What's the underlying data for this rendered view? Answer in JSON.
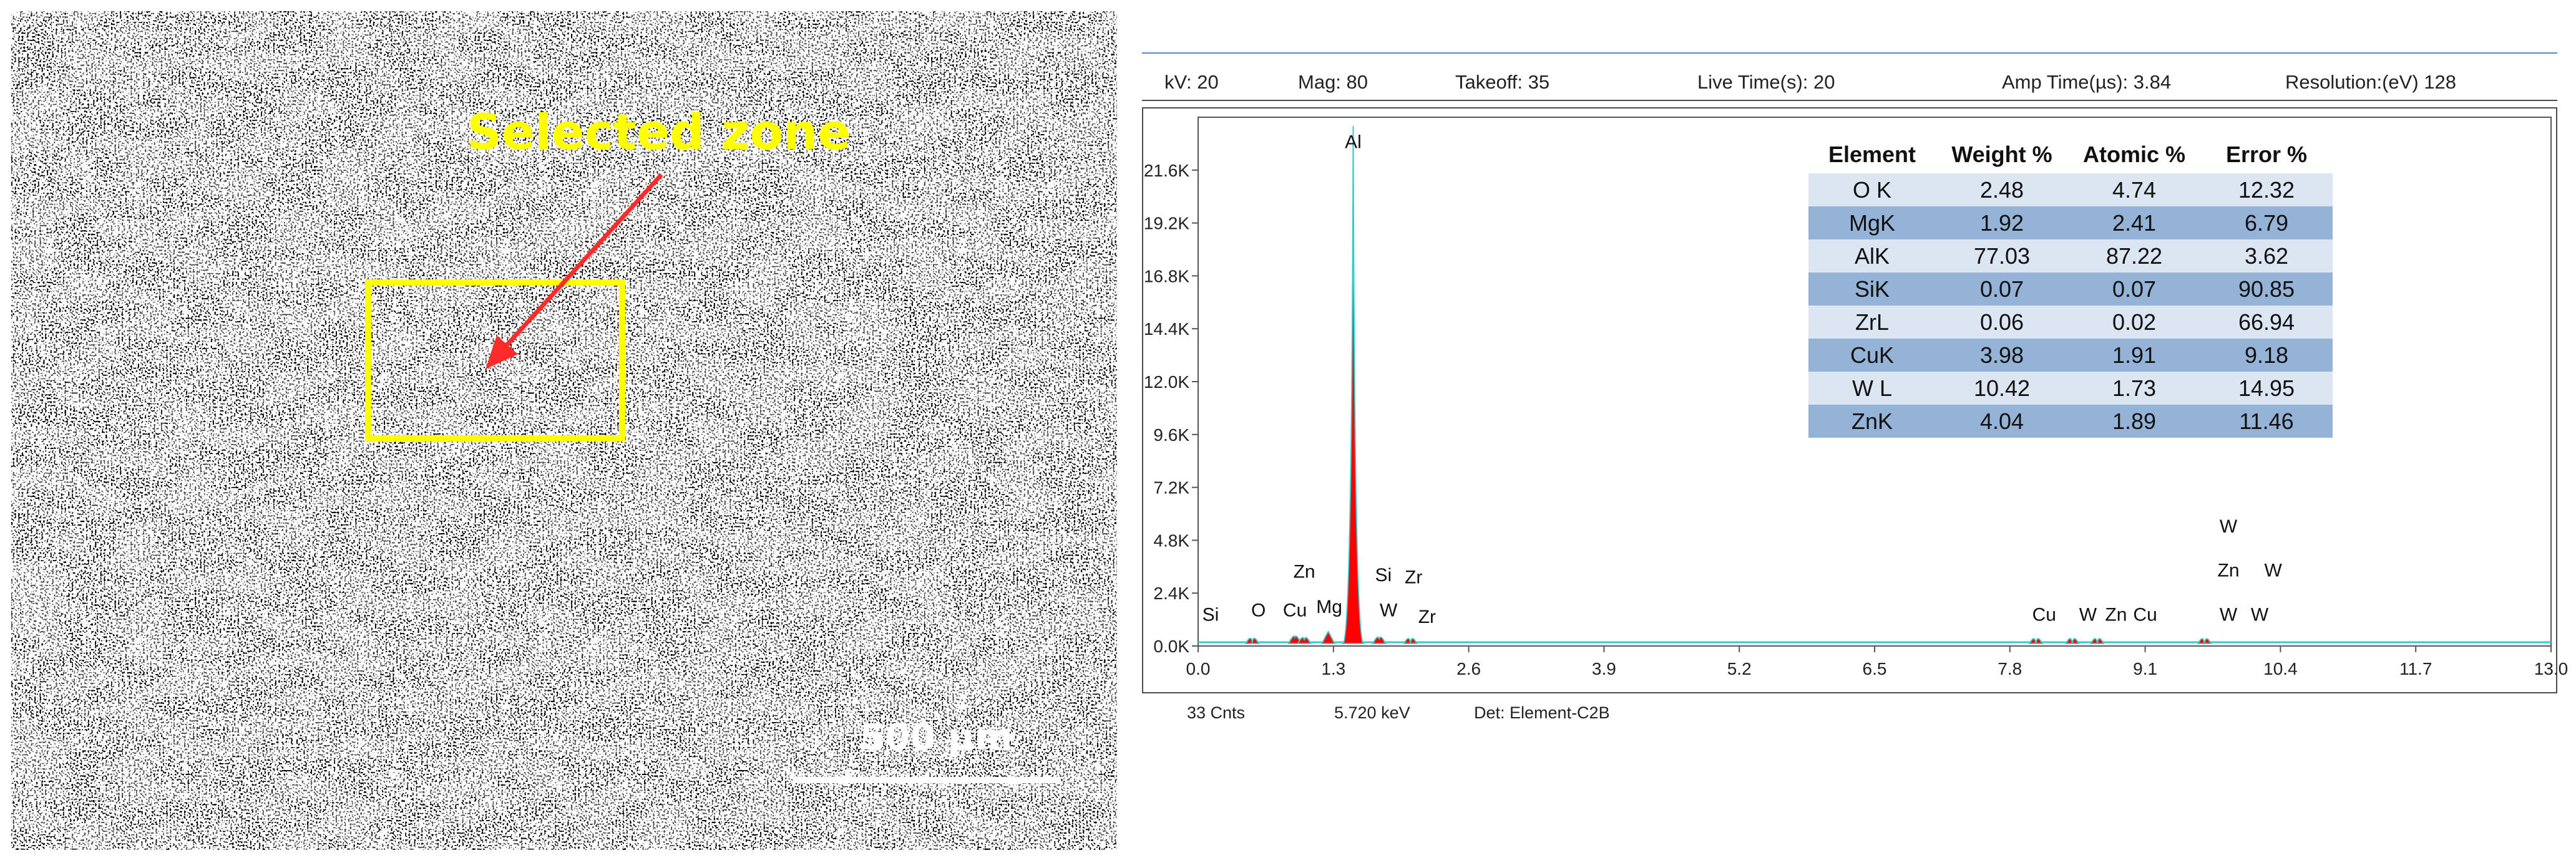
{
  "sem": {
    "zone_label": "Selected zone",
    "scale_label": "500 µm"
  },
  "params": {
    "kv": "kV: 20",
    "mag": "Mag: 80",
    "takeoff": "Takeoff: 35",
    "live_time": "Live Time(s): 20",
    "amp_time": "Amp Time(µs): 3.84",
    "resolution": "Resolution:(eV) 128"
  },
  "footer": {
    "cnts": "33 Cnts",
    "kev": "5.720 keV",
    "det": "Det: Element-C2B"
  },
  "colors": {
    "peak_fill": "#ff0000",
    "spectrum_line": "#33cccc",
    "annotation": "#ffff00",
    "arrow": "#ff2a2a",
    "table_light": "#dce6f2",
    "table_dark": "#95b3d7"
  },
  "chart_data": {
    "type": "area",
    "xlim": [
      0.0,
      13.0
    ],
    "ylim": [
      0,
      24000
    ],
    "x_ticks": [
      "0.0",
      "1.3",
      "2.6",
      "3.9",
      "5.2",
      "6.5",
      "7.8",
      "9.1",
      "10.4",
      "11.7",
      "13.0"
    ],
    "x_tick_values": [
      0.0,
      1.3,
      2.6,
      3.9,
      5.2,
      6.5,
      7.8,
      9.1,
      10.4,
      11.7,
      13.0
    ],
    "y_ticks": [
      "0.0K",
      "2.4K",
      "4.8K",
      "7.2K",
      "9.6K",
      "12.0K",
      "14.4K",
      "16.8K",
      "19.2K",
      "21.6K"
    ],
    "y_tick_values": [
      0,
      2400,
      4800,
      7200,
      9600,
      12000,
      14400,
      16800,
      19200,
      21600
    ],
    "peaks": [
      {
        "x": 0.52,
        "y": 150
      },
      {
        "x": 0.93,
        "y": 400
      },
      {
        "x": 1.02,
        "y": 250
      },
      {
        "x": 1.25,
        "y": 650
      },
      {
        "x": 1.49,
        "y": 23600
      },
      {
        "x": 1.74,
        "y": 300
      },
      {
        "x": 2.04,
        "y": 120
      },
      {
        "x": 8.05,
        "y": 90
      },
      {
        "x": 8.4,
        "y": 90
      },
      {
        "x": 8.64,
        "y": 90
      },
      {
        "x": 9.67,
        "y": 70
      }
    ],
    "peak_labels": [
      {
        "text": "Al",
        "x": 1.49,
        "y": 22600
      },
      {
        "text": "Si",
        "x": 0.12,
        "y": 1150
      },
      {
        "text": "O",
        "x": 0.58,
        "y": 1350
      },
      {
        "text": "Zn",
        "x": 1.02,
        "y": 3100
      },
      {
        "text": "Cu",
        "x": 0.93,
        "y": 1350
      },
      {
        "text": "Mg",
        "x": 1.26,
        "y": 1500
      },
      {
        "text": "Si",
        "x": 1.78,
        "y": 2950
      },
      {
        "text": "Zr",
        "x": 2.07,
        "y": 2850
      },
      {
        "text": "W",
        "x": 1.83,
        "y": 1350
      },
      {
        "text": "Zr",
        "x": 2.2,
        "y": 1050
      },
      {
        "text": "Cu",
        "x": 8.13,
        "y": 1150
      },
      {
        "text": "W",
        "x": 8.55,
        "y": 1150
      },
      {
        "text": "Zn",
        "x": 8.82,
        "y": 1150
      },
      {
        "text": "Cu",
        "x": 9.1,
        "y": 1150
      },
      {
        "text": "W",
        "x": 9.9,
        "y": 5150
      },
      {
        "text": "Zn",
        "x": 9.9,
        "y": 3150
      },
      {
        "text": "W",
        "x": 10.33,
        "y": 3150
      },
      {
        "text": "W",
        "x": 9.9,
        "y": 1150
      },
      {
        "text": "W",
        "x": 10.2,
        "y": 1150
      }
    ],
    "table": {
      "headers": [
        "Element",
        "Weight %",
        "Atomic %",
        "Error %"
      ],
      "rows": [
        [
          "O K",
          "2.48",
          "4.74",
          "12.32"
        ],
        [
          "MgK",
          "1.92",
          "2.41",
          "6.79"
        ],
        [
          "AlK",
          "77.03",
          "87.22",
          "3.62"
        ],
        [
          "SiK",
          "0.07",
          "0.07",
          "90.85"
        ],
        [
          "ZrL",
          "0.06",
          "0.02",
          "66.94"
        ],
        [
          "CuK",
          "3.98",
          "1.91",
          "9.18"
        ],
        [
          "W L",
          "10.42",
          "1.73",
          "14.95"
        ],
        [
          "ZnK",
          "4.04",
          "1.89",
          "11.46"
        ]
      ]
    }
  }
}
